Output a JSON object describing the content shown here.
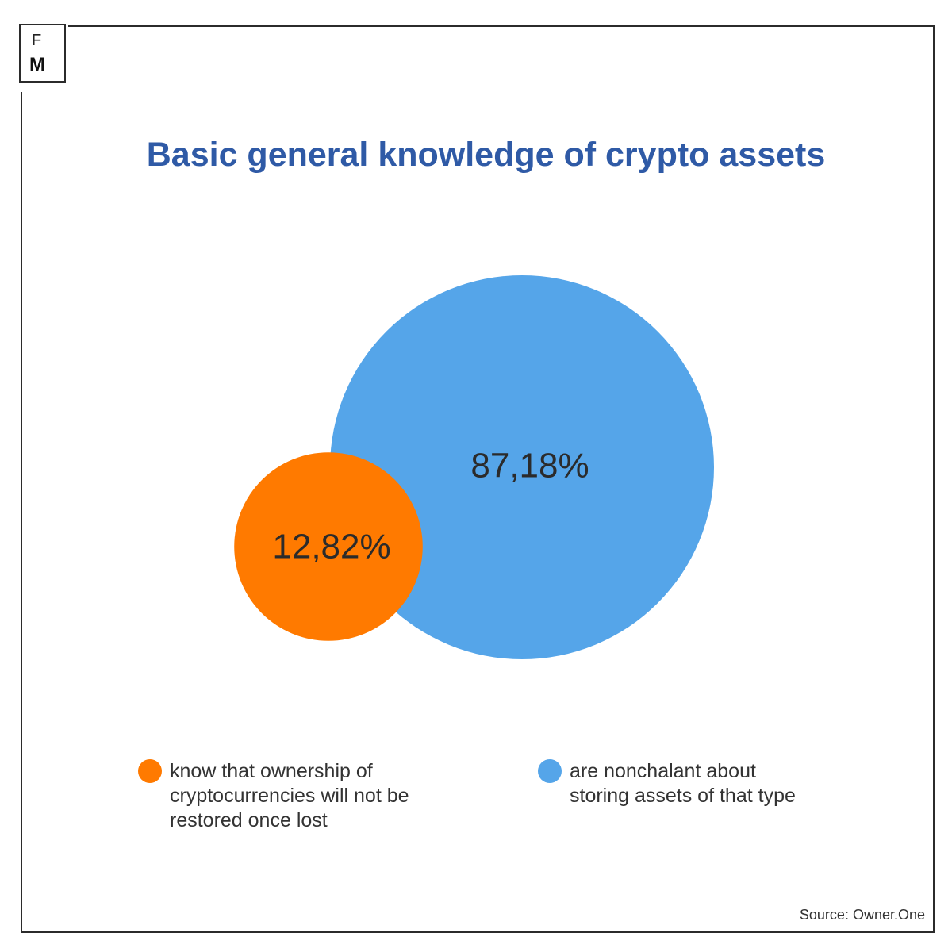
{
  "brand": {
    "letter_top": "F",
    "letter_bottom": "M"
  },
  "chart_data": {
    "type": "bubble",
    "title": "Basic general knowledge of crypto assets",
    "series": [
      {
        "name": "know that ownership of cryptocurrencies will not be restored once lost",
        "value": 12.82,
        "label": "12,82%",
        "color": "#ff7a00"
      },
      {
        "name": "are nonchalant about storing assets of that type",
        "value": 87.18,
        "label": "87,18%",
        "color": "#55a5e9"
      }
    ],
    "source": "Source: Owner.One"
  }
}
